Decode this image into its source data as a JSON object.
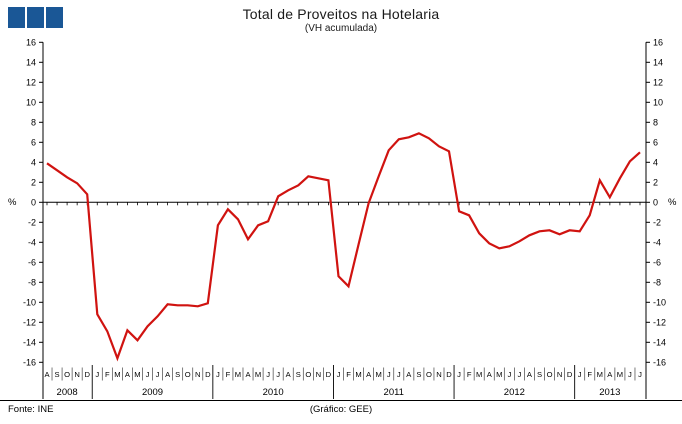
{
  "header": {
    "title": "Total de Proveitos na Hotelaria",
    "subtitle": "(VH acumulada)"
  },
  "footer": {
    "source": "Fonte: INE",
    "credit": "(Gráfico: GEE)"
  },
  "axis": {
    "unit_left": "%",
    "unit_right": "%"
  },
  "logo": {
    "color": "#1a5796",
    "squares": 3
  },
  "chart_data": {
    "type": "line",
    "title": "Total de Proveitos na Hotelaria",
    "subtitle": "(VH acumulada)",
    "ylabel": "%",
    "ylim": [
      -16,
      16
    ],
    "ytick_step": 2,
    "grid": false,
    "legend": false,
    "line_color": "#d01310",
    "axis_color": "#000000",
    "groups": [
      {
        "year": "2008",
        "months": [
          "A",
          "S",
          "O",
          "N",
          "D"
        ],
        "values": [
          3.9,
          3.2,
          2.5,
          1.9,
          0.8
        ]
      },
      {
        "year": "2009",
        "months": [
          "J",
          "F",
          "M",
          "A",
          "M",
          "J",
          "J",
          "A",
          "S",
          "O",
          "N",
          "D"
        ],
        "values": [
          -11.2,
          -12.9,
          -15.6,
          -12.8,
          -13.8,
          -12.4,
          -11.4,
          -10.2,
          -10.3,
          -10.3,
          -10.4,
          -10.1
        ]
      },
      {
        "year": "2010",
        "months": [
          "J",
          "F",
          "M",
          "A",
          "M",
          "J",
          "J",
          "A",
          "S",
          "O",
          "N",
          "D"
        ],
        "values": [
          -2.3,
          -0.7,
          -1.7,
          -3.7,
          -2.3,
          -1.9,
          0.6,
          1.2,
          1.7,
          2.6,
          2.4,
          2.2
        ]
      },
      {
        "year": "2011",
        "months": [
          "J",
          "F",
          "M",
          "A",
          "M",
          "J",
          "J",
          "A",
          "S",
          "O",
          "N",
          "D"
        ],
        "values": [
          -7.4,
          -8.4,
          -4.2,
          -0.1,
          2.6,
          5.2,
          6.3,
          6.5,
          6.9,
          6.4,
          5.6,
          5.1
        ]
      },
      {
        "year": "2012",
        "months": [
          "J",
          "F",
          "M",
          "A",
          "M",
          "J",
          "J",
          "A",
          "S",
          "O",
          "N",
          "D"
        ],
        "values": [
          -0.9,
          -1.3,
          -3.1,
          -4.1,
          -4.6,
          -4.4,
          -3.9,
          -3.3,
          -2.9,
          -2.8,
          -3.2,
          -2.8
        ]
      },
      {
        "year": "2013",
        "months": [
          "J",
          "F",
          "M",
          "A",
          "M",
          "J",
          "J"
        ],
        "values": [
          -2.9,
          -1.3,
          2.2,
          0.5,
          2.4,
          4.1,
          5.0
        ]
      }
    ]
  }
}
